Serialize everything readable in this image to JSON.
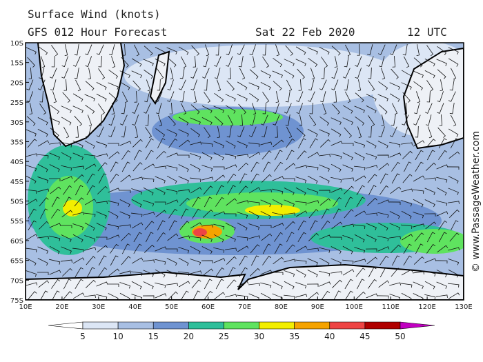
{
  "header": {
    "title": "Surface Wind (knots)",
    "subtitle": "GFS 012 Hour Forecast",
    "date": "Sat 22 Feb 2020",
    "time": "12 UTC"
  },
  "map": {
    "lat_labels": [
      "10S",
      "15S",
      "20S",
      "25S",
      "30S",
      "35S",
      "40S",
      "45S",
      "50S",
      "55S",
      "60S",
      "65S",
      "70S",
      "75S"
    ],
    "lon_labels": [
      "10E",
      "20E",
      "30E",
      "40E",
      "50E",
      "60E",
      "70E",
      "80E",
      "90E",
      "100E",
      "110E",
      "120E",
      "130E"
    ]
  },
  "colorbar": {
    "labels": [
      5,
      10,
      15,
      20,
      25,
      30,
      35,
      40,
      45,
      50
    ],
    "colors": [
      "#ffffff",
      "#dce6f5",
      "#a8bfe3",
      "#6f93d1",
      "#2fbf9a",
      "#5fe35f",
      "#f2ee00",
      "#f5a300",
      "#ee4444",
      "#b00000",
      "#c000c0"
    ]
  },
  "credit": "© www.PassageWeather.com"
}
